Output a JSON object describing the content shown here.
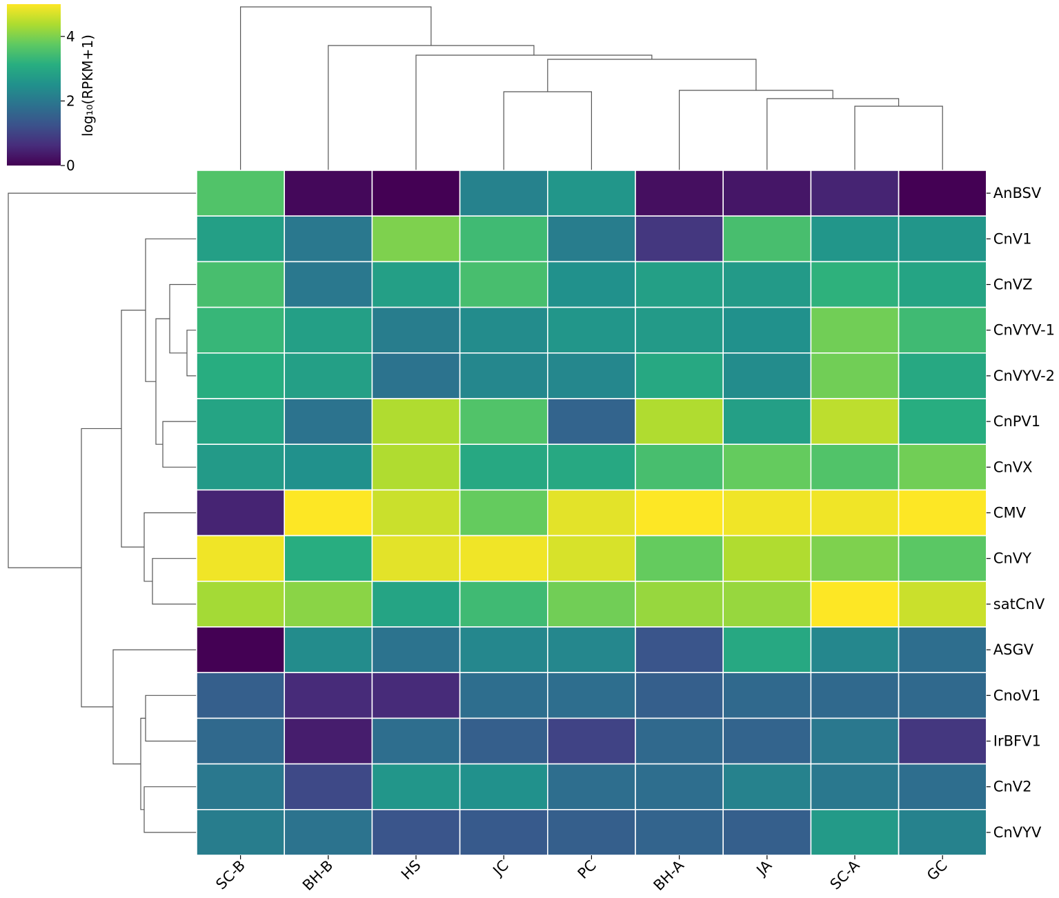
{
  "chart_data": {
    "type": "heatmap",
    "title": "",
    "columns": [
      "SC-B",
      "BH-B",
      "HS",
      "JC",
      "PC",
      "BH-A",
      "JA",
      "SC-A",
      "GC"
    ],
    "rows": [
      "AnBSV",
      "CnV1",
      "CnVZ",
      "CnVYV-1",
      "CnVYV-2",
      "CnPV1",
      "CnVX",
      "CMV",
      "CnVY",
      "satCnV",
      "ASGV",
      "CnoV1",
      "IrBFV1",
      "CnV2",
      "CnVYV"
    ],
    "values": [
      [
        3.6,
        0.1,
        0.0,
        2.2,
        2.6,
        0.2,
        0.3,
        0.5,
        0.0
      ],
      [
        2.8,
        2.0,
        4.0,
        3.4,
        2.1,
        0.8,
        3.5,
        2.6,
        2.6
      ],
      [
        3.5,
        2.0,
        2.8,
        3.5,
        2.5,
        2.8,
        2.7,
        3.2,
        2.9
      ],
      [
        3.3,
        2.8,
        2.1,
        2.4,
        2.6,
        2.7,
        2.5,
        3.9,
        3.4
      ],
      [
        3.1,
        2.8,
        1.9,
        2.3,
        2.3,
        3.0,
        2.4,
        3.9,
        3.0
      ],
      [
        2.9,
        1.9,
        4.4,
        3.6,
        1.6,
        4.4,
        2.8,
        4.5,
        3.1
      ],
      [
        2.7,
        2.5,
        4.4,
        3.0,
        3.0,
        3.5,
        3.8,
        3.6,
        3.9
      ],
      [
        0.5,
        5.0,
        4.6,
        3.8,
        4.8,
        5.0,
        4.9,
        4.9,
        5.0
      ],
      [
        4.9,
        3.1,
        4.8,
        4.9,
        4.7,
        3.8,
        4.4,
        4.0,
        3.7
      ],
      [
        4.3,
        4.1,
        2.9,
        3.4,
        3.9,
        4.2,
        4.2,
        5.0,
        4.6
      ],
      [
        0.0,
        2.4,
        1.9,
        2.3,
        2.3,
        1.3,
        3.0,
        2.3,
        1.8
      ],
      [
        1.5,
        0.6,
        0.6,
        1.8,
        1.8,
        1.5,
        1.7,
        1.7,
        1.7
      ],
      [
        1.7,
        0.4,
        1.8,
        1.5,
        1.0,
        1.7,
        1.6,
        2.0,
        0.8
      ],
      [
        2.0,
        1.1,
        2.6,
        2.5,
        1.8,
        1.8,
        2.2,
        2.0,
        1.8
      ],
      [
        2.1,
        1.9,
        1.3,
        1.4,
        1.5,
        1.6,
        1.5,
        2.7,
        2.2
      ]
    ],
    "colorbar": {
      "label": "log₁₀(RPKM+1)",
      "range": [
        0,
        5
      ],
      "ticks": [
        "0",
        "2",
        "4"
      ],
      "colormap": "viridis"
    },
    "column_dendrogram": true,
    "row_dendrogram": true
  }
}
